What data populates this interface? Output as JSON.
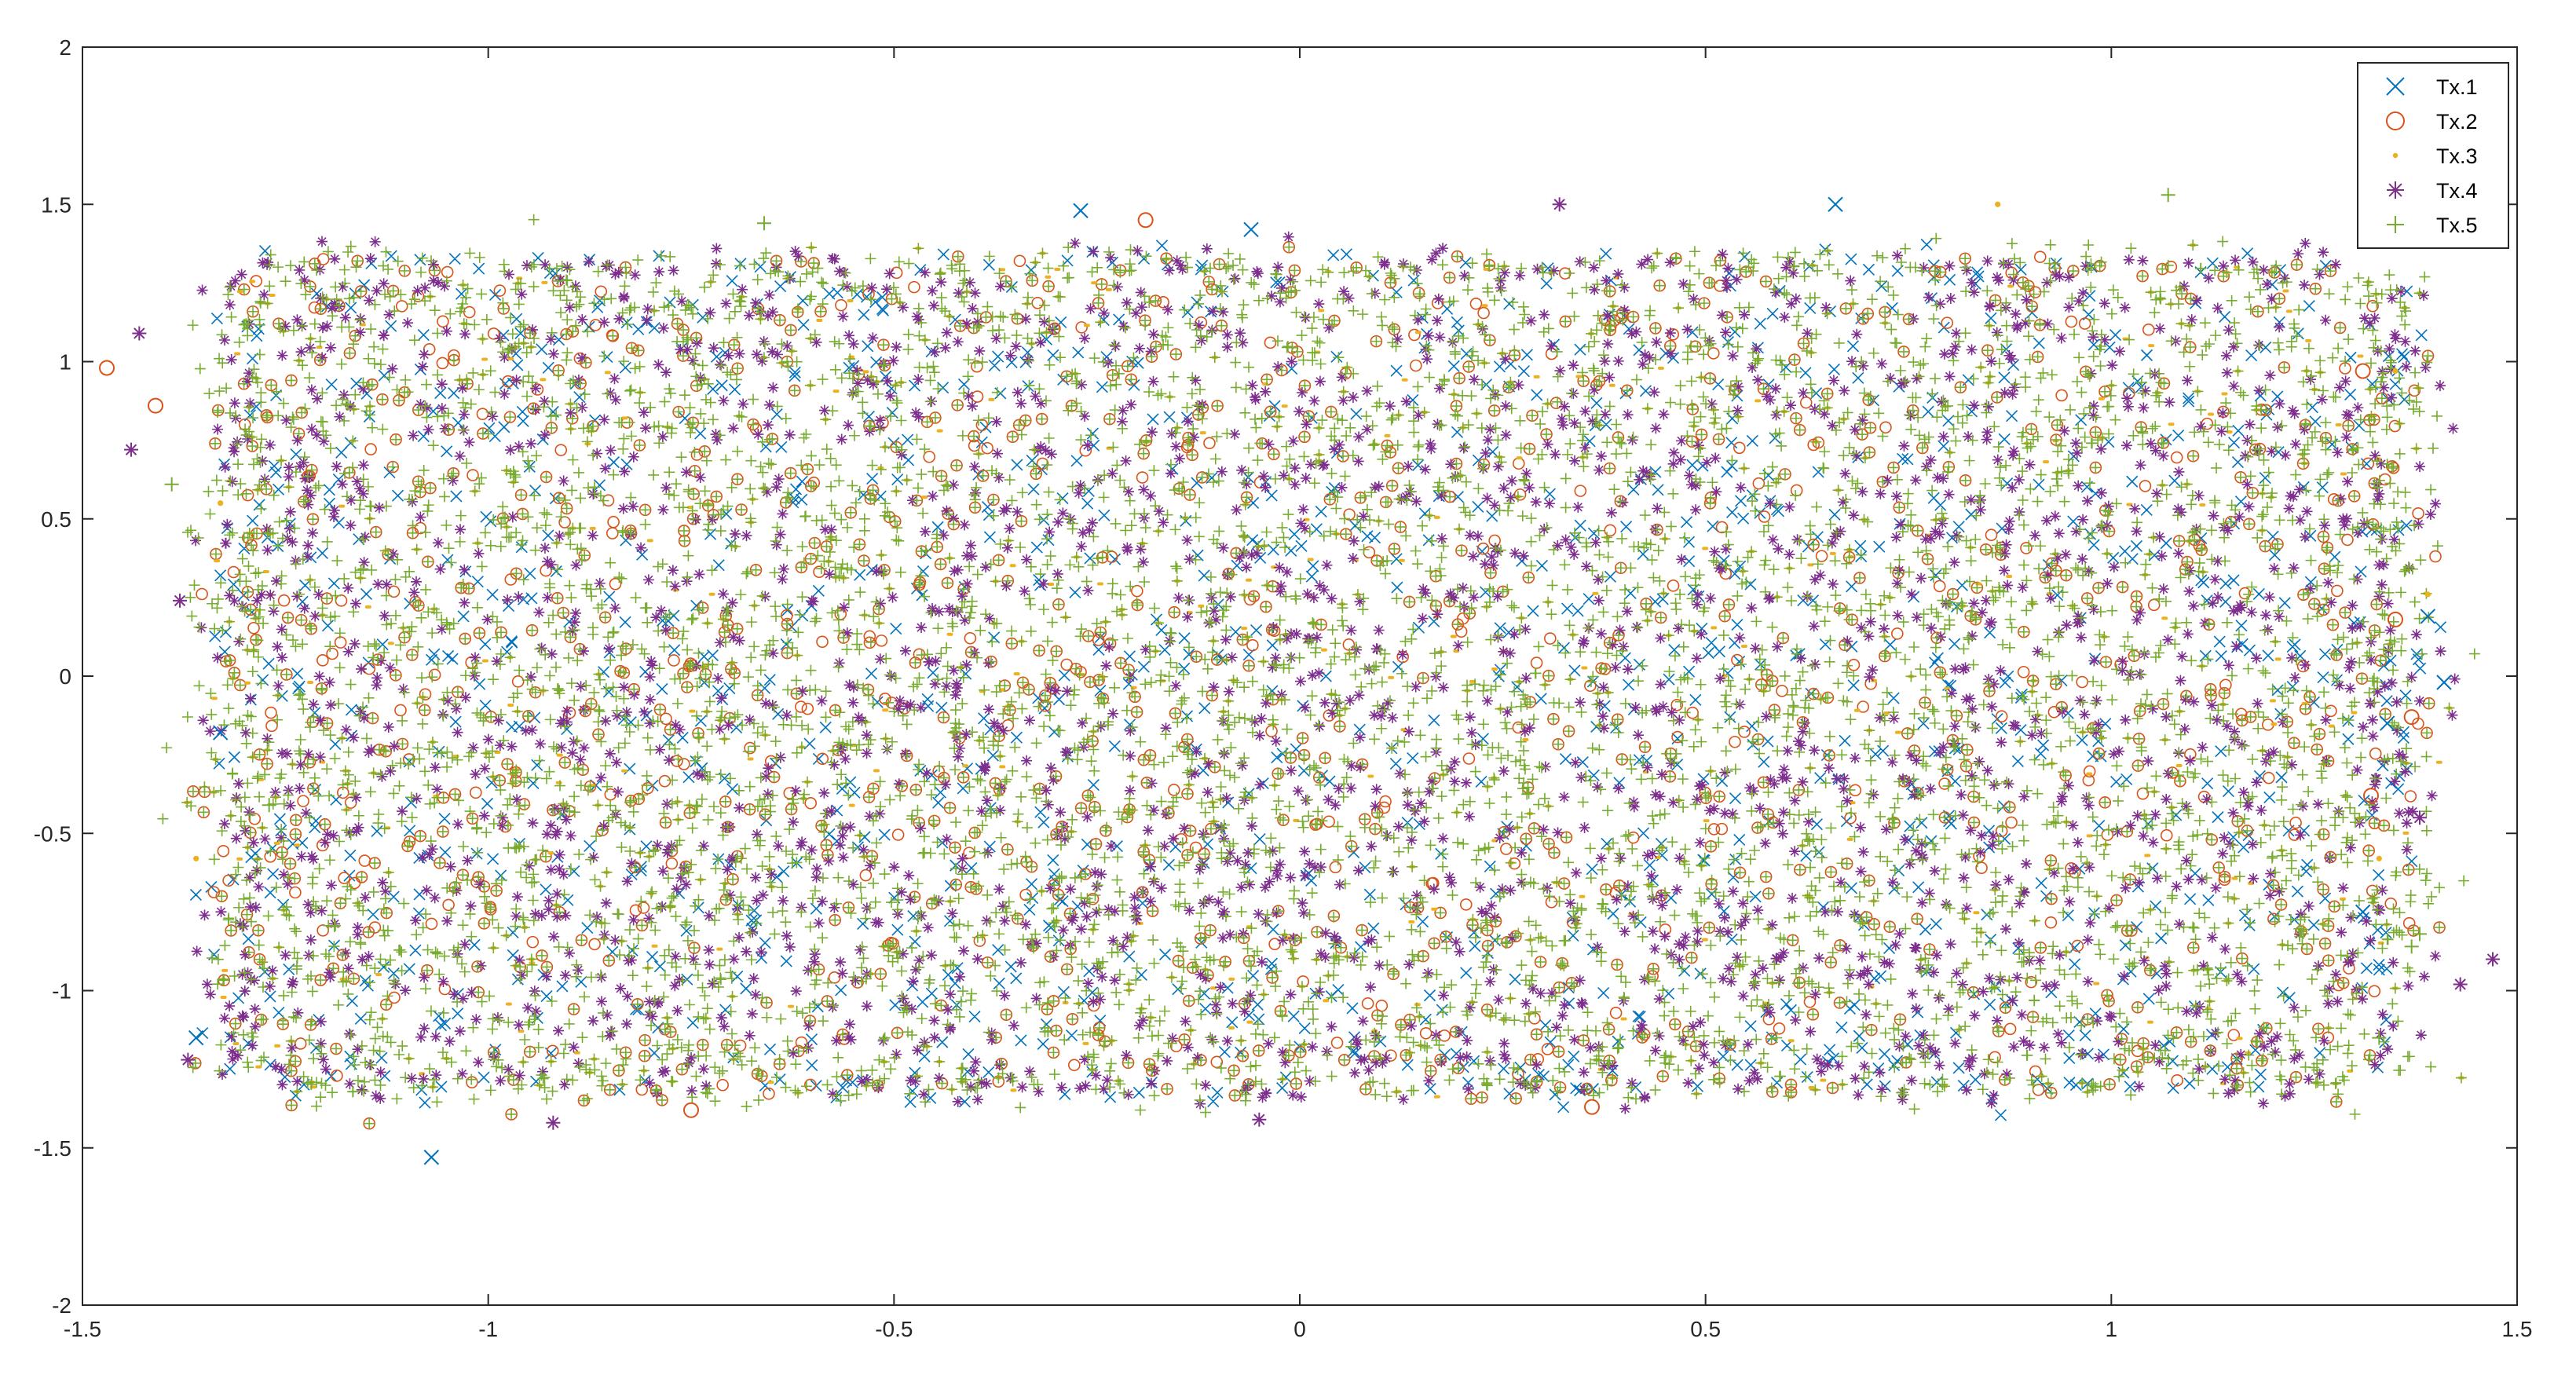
{
  "chart_data": {
    "type": "scatter",
    "title": "",
    "xlabel": "",
    "ylabel": "",
    "xlim": [
      -1.5,
      1.5
    ],
    "ylim": [
      -2,
      2
    ],
    "x_ticks": [
      -1.5,
      -1,
      -0.5,
      0,
      0.5,
      1,
      1.5
    ],
    "x_tick_labels": [
      "-1.5",
      "-1",
      "-0.5",
      "0",
      "0.5",
      "1",
      "1.5"
    ],
    "y_ticks": [
      -2,
      -1.5,
      -1,
      -0.5,
      0,
      0.5,
      1,
      1.5,
      2
    ],
    "y_tick_labels": [
      "-2",
      "-1.5",
      "-1",
      "-0.5",
      "0",
      "0.5",
      "1",
      "1.5",
      "2"
    ],
    "grid": false,
    "legend_position": "top-right",
    "cloud_extent": {
      "x": [
        -1.28,
        1.32
      ],
      "y": [
        -1.28,
        1.28
      ]
    },
    "series": [
      {
        "name": "Tx.1",
        "marker": "x",
        "color": "#0072BD",
        "outliers": [
          [
            -1.07,
            -1.53
          ],
          [
            -1.36,
            -1.15
          ],
          [
            1.41,
            -0.02
          ],
          [
            1.39,
            0.19
          ],
          [
            0.66,
            1.5
          ],
          [
            -0.27,
            1.48
          ],
          [
            -0.06,
            1.42
          ],
          [
            1.31,
            -0.75
          ],
          [
            -1.33,
            -0.18
          ],
          [
            1.34,
            -0.15
          ]
        ]
      },
      {
        "name": "Tx.2",
        "marker": "o",
        "color": "#D95319",
        "outliers": [
          [
            -1.47,
            0.98
          ],
          [
            -0.19,
            1.45
          ],
          [
            0.36,
            -1.37
          ],
          [
            -0.75,
            -1.38
          ],
          [
            1.37,
            -0.13
          ],
          [
            1.35,
            0.18
          ],
          [
            1.32,
            -0.38
          ],
          [
            -1.41,
            0.86
          ],
          [
            1.31,
            0.97
          ]
        ]
      },
      {
        "name": "Tx.3",
        "marker": ".",
        "color": "#EDB120",
        "outliers": [
          [
            1.35,
            0.97
          ],
          [
            -1.33,
            0.55
          ],
          [
            1.33,
            -0.58
          ],
          [
            0.86,
            1.5
          ],
          [
            -1.36,
            -0.58
          ],
          [
            1.39,
            0.26
          ]
        ]
      },
      {
        "name": "Tx.4",
        "marker": "*",
        "color": "#7E2F8E",
        "outliers": [
          [
            -1.43,
            1.09
          ],
          [
            -1.44,
            0.72
          ],
          [
            1.47,
            -0.9
          ],
          [
            0.32,
            1.5
          ],
          [
            -0.05,
            -1.41
          ],
          [
            -1.37,
            -1.22
          ],
          [
            -1.38,
            0.24
          ],
          [
            1.43,
            -0.98
          ],
          [
            1.38,
            -0.45
          ],
          [
            -0.92,
            -1.42
          ]
        ]
      },
      {
        "name": "Tx.5",
        "marker": "+",
        "color": "#77AC30",
        "outliers": [
          [
            1.07,
            1.53
          ],
          [
            -1.39,
            0.61
          ],
          [
            1.38,
            -0.82
          ],
          [
            1.33,
            -1.15
          ],
          [
            -0.66,
            1.44
          ],
          [
            1.37,
            -0.86
          ],
          [
            -1.27,
            -0.41
          ]
        ]
      }
    ]
  }
}
